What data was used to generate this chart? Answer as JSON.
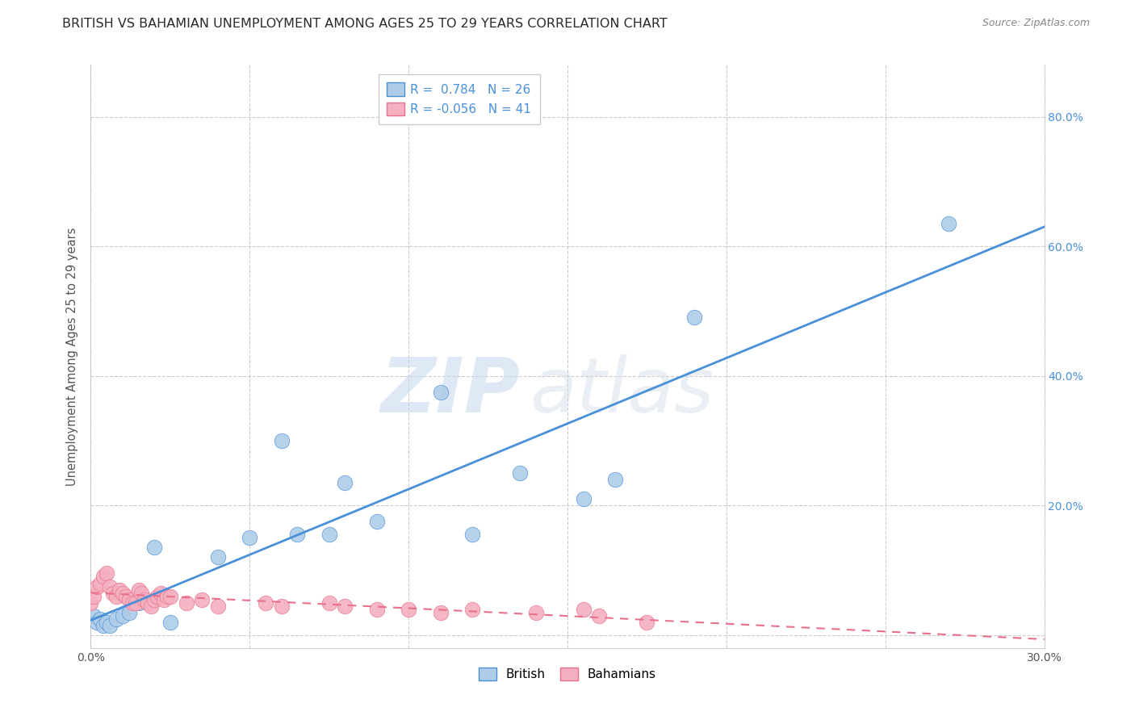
{
  "title": "BRITISH VS BAHAMIAN UNEMPLOYMENT AMONG AGES 25 TO 29 YEARS CORRELATION CHART",
  "source": "Source: ZipAtlas.com",
  "ylabel": "Unemployment Among Ages 25 to 29 years",
  "xlim": [
    0.0,
    0.3
  ],
  "ylim": [
    -0.02,
    0.88
  ],
  "british_color": "#aecce8",
  "bahamian_color": "#f4afc0",
  "british_line_color": "#4a90d9",
  "bahamian_line_color": "#e8708a",
  "legend_R_british": "0.784",
  "legend_N_british": "26",
  "legend_R_bahamian": "-0.056",
  "legend_N_bahamian": "41",
  "watermark_zip": "ZIP",
  "watermark_atlas": "atlas",
  "british_x": [
    0.001,
    0.002,
    0.003,
    0.004,
    0.005,
    0.006,
    0.008,
    0.01,
    0.012,
    0.015,
    0.02,
    0.025,
    0.04,
    0.05,
    0.06,
    0.065,
    0.075,
    0.08,
    0.09,
    0.11,
    0.12,
    0.135,
    0.155,
    0.165,
    0.19,
    0.27
  ],
  "british_y": [
    0.03,
    0.02,
    0.025,
    0.015,
    0.02,
    0.015,
    0.025,
    0.03,
    0.035,
    0.05,
    0.135,
    0.02,
    0.12,
    0.15,
    0.3,
    0.155,
    0.155,
    0.235,
    0.175,
    0.375,
    0.155,
    0.25,
    0.21,
    0.24,
    0.49,
    0.635
  ],
  "bahamian_x": [
    0.0,
    0.001,
    0.002,
    0.003,
    0.004,
    0.005,
    0.006,
    0.007,
    0.008,
    0.009,
    0.01,
    0.011,
    0.012,
    0.013,
    0.014,
    0.015,
    0.016,
    0.017,
    0.018,
    0.019,
    0.02,
    0.021,
    0.022,
    0.023,
    0.024,
    0.025,
    0.03,
    0.035,
    0.04,
    0.055,
    0.06,
    0.075,
    0.08,
    0.09,
    0.1,
    0.11,
    0.12,
    0.14,
    0.155,
    0.16,
    0.175
  ],
  "bahamian_y": [
    0.05,
    0.06,
    0.075,
    0.08,
    0.09,
    0.095,
    0.075,
    0.065,
    0.06,
    0.07,
    0.065,
    0.06,
    0.055,
    0.05,
    0.05,
    0.07,
    0.065,
    0.055,
    0.05,
    0.045,
    0.055,
    0.06,
    0.065,
    0.055,
    0.06,
    0.06,
    0.05,
    0.055,
    0.045,
    0.05,
    0.045,
    0.05,
    0.045,
    0.04,
    0.04,
    0.035,
    0.04,
    0.035,
    0.04,
    0.03,
    0.02
  ],
  "grid_color": "#cccccc",
  "background_color": "#ffffff",
  "title_fontsize": 11.5,
  "axis_label_fontsize": 10.5,
  "tick_fontsize": 10,
  "legend_fontsize": 11,
  "right_tick_color": "#4a90d9"
}
